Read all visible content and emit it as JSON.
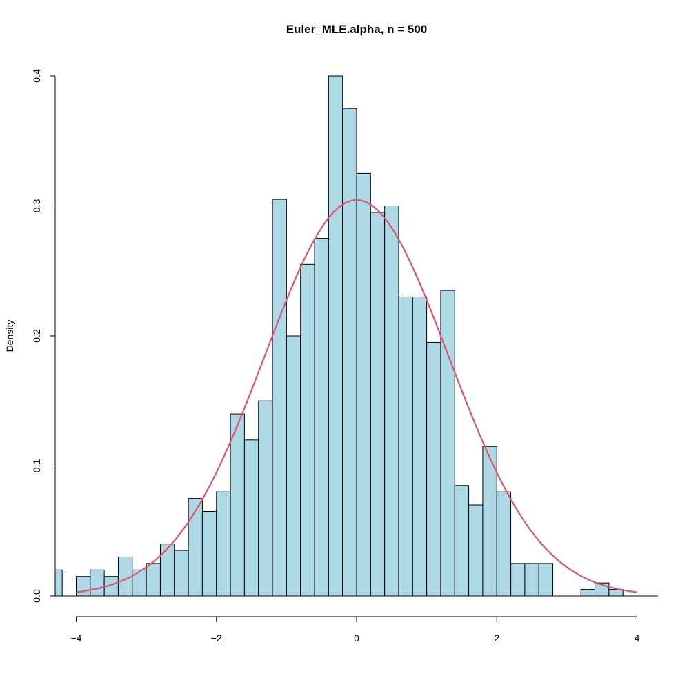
{
  "chart_data": {
    "type": "bar",
    "title": "Euler_MLE.alpha, n = 500",
    "xlabel": "",
    "ylabel": "Density",
    "xlim": [
      -4.3,
      4.3
    ],
    "ylim": [
      0,
      0.4
    ],
    "bin_width": 0.2,
    "bins_start": [
      -4.4,
      -4.2,
      -4.0,
      -3.8,
      -3.6,
      -3.4,
      -3.2,
      -3.0,
      -2.8,
      -2.6,
      -2.4,
      -2.2,
      -2.0,
      -1.8,
      -1.6,
      -1.4,
      -1.2,
      -1.0,
      -0.8,
      -0.6,
      -0.4,
      -0.2,
      0.0,
      0.2,
      0.4,
      0.6,
      0.8,
      1.0,
      1.2,
      1.4,
      1.6,
      1.8,
      2.0,
      2.2,
      2.4,
      2.6,
      2.8,
      3.0,
      3.2,
      3.4,
      3.6
    ],
    "values": [
      0.02,
      0.0,
      0.015,
      0.02,
      0.015,
      0.03,
      0.02,
      0.025,
      0.04,
      0.035,
      0.075,
      0.065,
      0.08,
      0.14,
      0.12,
      0.15,
      0.305,
      0.2,
      0.255,
      0.275,
      0.42,
      0.375,
      0.325,
      0.295,
      0.3,
      0.23,
      0.23,
      0.195,
      0.235,
      0.085,
      0.07,
      0.115,
      0.08,
      0.025,
      0.025,
      0.025,
      0.0,
      0.0,
      0.005,
      0.01,
      0.005
    ],
    "density_curve": {
      "name": "",
      "distribution": "normal",
      "mean": 0.0,
      "sd": 1.31,
      "x_range": [
        -4,
        4
      ],
      "color": "#DF536B"
    },
    "x_ticks": [
      -4,
      -2,
      0,
      2,
      4
    ],
    "x_tick_labels": [
      "−4",
      "−2",
      "0",
      "2",
      "4"
    ],
    "y_ticks": [
      0.0,
      0.1,
      0.2,
      0.3,
      0.4
    ],
    "y_tick_labels": [
      "0.0",
      "0.1",
      "0.2",
      "0.3",
      "0.4"
    ],
    "grid": false,
    "colors": {
      "bar_fill": "#ADD8E6",
      "bar_stroke": "#000000",
      "curve": "#DF536B"
    }
  }
}
